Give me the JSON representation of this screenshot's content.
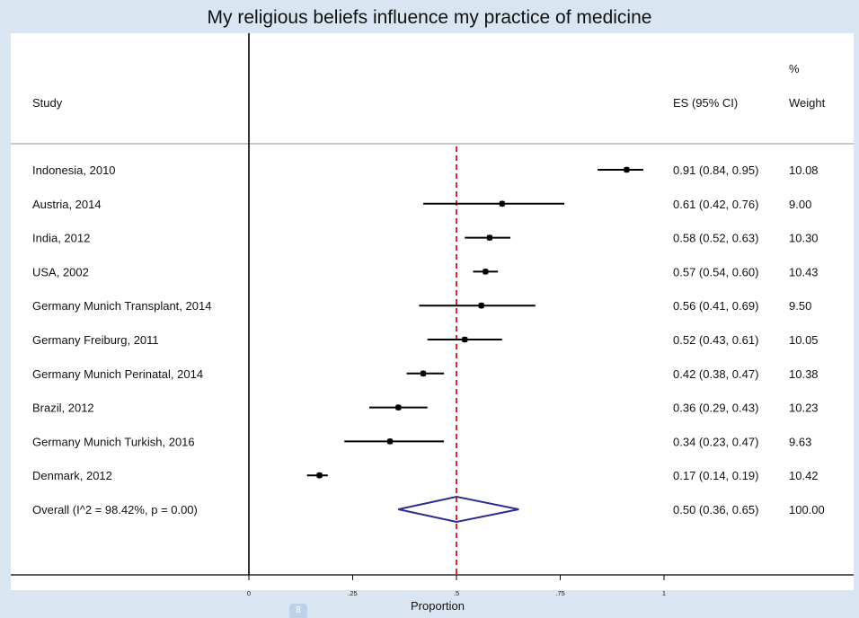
{
  "chart_data": {
    "type": "forest",
    "title": "My religious beliefs influence my practice of medicine",
    "headers": {
      "study": "Study",
      "es": "ES (95% CI)",
      "weight_top": "%",
      "weight_bottom": "Weight"
    },
    "xlabel": "Proportion",
    "xlim": [
      0,
      1
    ],
    "xticks": [
      {
        "value": 0,
        "label": "0"
      },
      {
        "value": 0.25,
        "label": ".25"
      },
      {
        "value": 0.5,
        "label": ".5"
      },
      {
        "value": 0.75,
        "label": ".75"
      },
      {
        "value": 1,
        "label": "1"
      }
    ],
    "reference_line": 0.5,
    "studies": [
      {
        "label": "Indonesia, 2010",
        "es": 0.91,
        "lo": 0.84,
        "hi": 0.95,
        "es_text": "0.91 (0.84, 0.95)",
        "weight": "10.08"
      },
      {
        "label": "Austria, 2014",
        "es": 0.61,
        "lo": 0.42,
        "hi": 0.76,
        "es_text": "0.61 (0.42, 0.76)",
        "weight": "9.00"
      },
      {
        "label": "India, 2012",
        "es": 0.58,
        "lo": 0.52,
        "hi": 0.63,
        "es_text": "0.58 (0.52, 0.63)",
        "weight": "10.30"
      },
      {
        "label": "USA, 2002",
        "es": 0.57,
        "lo": 0.54,
        "hi": 0.6,
        "es_text": "0.57 (0.54, 0.60)",
        "weight": "10.43"
      },
      {
        "label": "Germany Munich Transplant, 2014",
        "es": 0.56,
        "lo": 0.41,
        "hi": 0.69,
        "es_text": "0.56 (0.41, 0.69)",
        "weight": "9.50"
      },
      {
        "label": "Germany Freiburg, 2011",
        "es": 0.52,
        "lo": 0.43,
        "hi": 0.61,
        "es_text": "0.52 (0.43, 0.61)",
        "weight": "10.05"
      },
      {
        "label": "Germany Munich Perinatal, 2014",
        "es": 0.42,
        "lo": 0.38,
        "hi": 0.47,
        "es_text": "0.42 (0.38, 0.47)",
        "weight": "10.38"
      },
      {
        "label": "Brazil, 2012",
        "es": 0.36,
        "lo": 0.29,
        "hi": 0.43,
        "es_text": "0.36 (0.29, 0.43)",
        "weight": "10.23"
      },
      {
        "label": "Germany Munich Turkish, 2016",
        "es": 0.34,
        "lo": 0.23,
        "hi": 0.47,
        "es_text": "0.34 (0.23, 0.47)",
        "weight": "9.63"
      },
      {
        "label": "Denmark, 2012",
        "es": 0.17,
        "lo": 0.14,
        "hi": 0.19,
        "es_text": "0.17 (0.14, 0.19)",
        "weight": "10.42"
      }
    ],
    "overall": {
      "label": "Overall  (I^2 = 98.42%, p = 0.00)",
      "es": 0.5,
      "lo": 0.36,
      "hi": 0.65,
      "es_text": "0.50 (0.36, 0.65)",
      "weight": "100.00"
    },
    "colors": {
      "reference_line": "#e8242a",
      "diamond": "#2b2d8f",
      "marker": "#000000"
    }
  },
  "page_badge": "8"
}
